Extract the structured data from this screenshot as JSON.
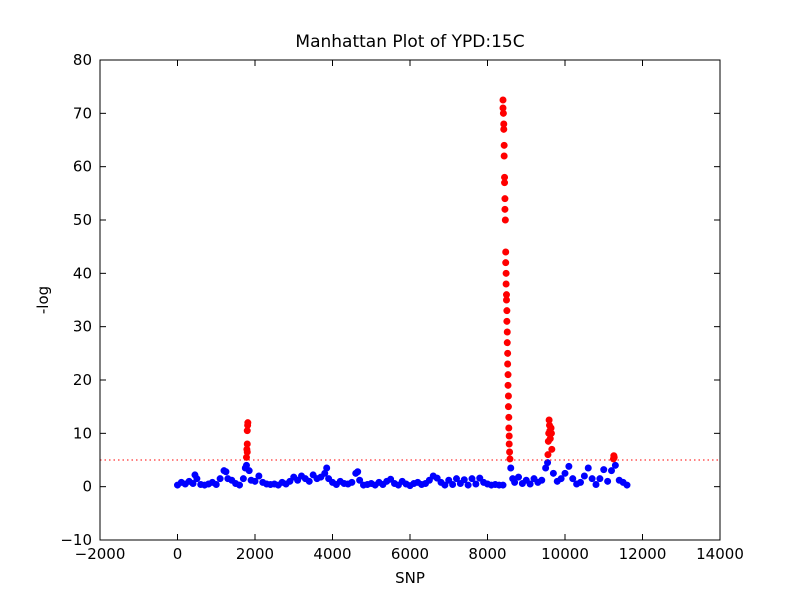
{
  "chart_data": {
    "type": "scatter",
    "title": "Manhattan Plot of YPD:15C",
    "xlabel": "SNP",
    "ylabel": "-log",
    "xlim": [
      -2000,
      14000
    ],
    "ylim": [
      -10,
      80
    ],
    "xticks": [
      {
        "value": -2000,
        "label": "−2000"
      },
      0,
      2000,
      4000,
      6000,
      8000,
      10000,
      12000,
      14000
    ],
    "yticks": [
      {
        "value": -10,
        "label": "−10"
      },
      0,
      10,
      20,
      30,
      40,
      50,
      60,
      70,
      80
    ],
    "threshold": 5,
    "threshold_color": "#ff0000",
    "grid": false,
    "series": [
      {
        "color": "#0000ff",
        "x": [
          0,
          100,
          200,
          300,
          400,
          450,
          500,
          600,
          700,
          800,
          900,
          1000,
          1100,
          1200,
          1250,
          1300,
          1400,
          1500,
          1600,
          1700,
          1750,
          1780,
          1850,
          1900,
          2000,
          2100,
          2200,
          2300,
          2400,
          2500,
          2600,
          2700,
          2800,
          2900,
          3000,
          3100,
          3200,
          3300,
          3400,
          3500,
          3600,
          3700,
          3800,
          3850,
          3900,
          4000,
          4100,
          4200,
          4300,
          4400,
          4500,
          4600,
          4650,
          4700,
          4800,
          4900,
          5000,
          5100,
          5200,
          5300,
          5400,
          5500,
          5600,
          5700,
          5800,
          5900,
          6000,
          6100,
          6200,
          6300,
          6400,
          6500,
          6600,
          6700,
          6800,
          6900,
          7000,
          7100,
          7200,
          7300,
          7400,
          7500,
          7600,
          7700,
          7800,
          7900,
          8000,
          8100,
          8200,
          8300,
          8400,
          8600,
          8650,
          8700,
          8800,
          8900,
          9000,
          9100,
          9200,
          9300,
          9400,
          9500,
          9550,
          9700,
          9800,
          9900,
          10000,
          10100,
          10200,
          10300,
          10400,
          10500,
          10600,
          10700,
          10800,
          10900,
          11000,
          11100,
          11200,
          11300,
          11400,
          11500,
          11600
        ],
        "values": [
          0.3,
          0.8,
          0.5,
          1.0,
          0.6,
          2.2,
          1.5,
          0.4,
          0.3,
          0.5,
          0.8,
          0.4,
          1.5,
          3.0,
          2.8,
          1.5,
          1.2,
          0.6,
          0.3,
          1.5,
          3.5,
          4.0,
          3.0,
          1.2,
          1.0,
          2.0,
          0.8,
          0.5,
          0.4,
          0.5,
          0.3,
          0.8,
          0.5,
          1.0,
          1.8,
          1.2,
          2.0,
          1.5,
          1.0,
          2.2,
          1.5,
          1.8,
          2.5,
          3.5,
          1.5,
          0.8,
          0.4,
          1.0,
          0.6,
          0.5,
          0.8,
          2.5,
          2.8,
          1.2,
          0.3,
          0.4,
          0.6,
          0.3,
          0.8,
          0.4,
          1.0,
          1.4,
          0.6,
          0.3,
          1.0,
          0.5,
          0.2,
          0.6,
          0.8,
          0.4,
          0.6,
          1.2,
          2.0,
          1.6,
          0.8,
          0.3,
          1.2,
          0.4,
          1.5,
          0.6,
          1.3,
          0.3,
          1.5,
          0.5,
          1.6,
          0.8,
          0.5,
          0.3,
          0.4,
          0.3,
          0.3,
          3.5,
          1.5,
          0.8,
          1.8,
          0.6,
          1.2,
          0.5,
          1.5,
          0.8,
          1.2,
          3.5,
          4.5,
          2.5,
          1.0,
          1.5,
          2.5,
          3.8,
          1.5,
          0.5,
          0.8,
          2.0,
          3.5,
          1.5,
          0.4,
          1.5,
          3.2,
          1.0,
          3.0,
          4.0,
          1.2,
          0.8,
          0.3
        ]
      },
      {
        "color": "#ff0000",
        "x": [
          1780,
          1790,
          1800,
          1800,
          1810,
          1815,
          1800,
          8400,
          8400,
          8410,
          8420,
          8420,
          8430,
          8430,
          8440,
          8440,
          8450,
          8450,
          8460,
          8470,
          8470,
          8480,
          8480,
          8490,
          8490,
          8500,
          8500,
          8510,
          8510,
          8520,
          8520,
          8530,
          8530,
          8540,
          8540,
          8550,
          8550,
          8560,
          8560,
          8570,
          8580,
          9560,
          9570,
          9580,
          9590,
          9600,
          9610,
          9620,
          9640,
          9650,
          9660,
          11250,
          11260,
          11270
        ],
        "values": [
          5.5,
          7,
          8,
          10.5,
          11.5,
          12,
          6.5,
          72.5,
          71,
          70,
          68,
          67,
          64,
          62,
          58,
          57,
          54,
          52,
          50,
          44,
          42,
          40,
          38,
          36,
          35,
          33,
          31,
          29,
          27,
          25,
          23,
          21,
          19,
          17,
          15,
          13,
          11,
          9.5,
          8,
          6.5,
          5.2,
          6,
          8.5,
          10,
          12.5,
          11.5,
          10.5,
          9,
          11,
          10,
          7,
          5.2,
          5.8,
          5.5
        ]
      }
    ]
  }
}
